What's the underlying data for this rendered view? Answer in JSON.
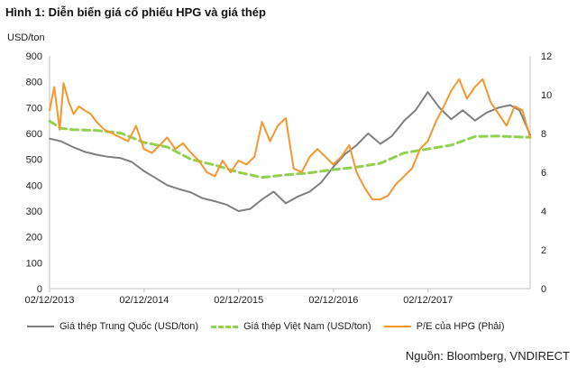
{
  "header": {
    "title": "Hình 1: Diễn biến giá cổ phiếu HPG và giá thép"
  },
  "footer": {
    "source": "Nguồn: Bloomberg, VNDIRECT"
  },
  "chart_data": {
    "type": "line",
    "title": "",
    "ylabel_left": "USD/ton",
    "ylabel_right": "",
    "ylim_left": [
      0,
      900
    ],
    "yticks_left": [
      "900",
      "800",
      "700",
      "600",
      "500",
      "400",
      "300",
      "200",
      "100",
      "0"
    ],
    "ylim_right": [
      0,
      12
    ],
    "yticks_right": [
      "12",
      "10",
      "8",
      "6",
      "4",
      "2",
      "0"
    ],
    "x_range": [
      "2013-12-02",
      "2018-12-31"
    ],
    "xticks": [
      "02/12/2013",
      "02/12/2014",
      "02/12/2015",
      "02/12/2016",
      "02/12/2017"
    ],
    "grid": false,
    "legend_position": "bottom",
    "series": [
      {
        "name": "Giá thép Trung Quốc  (USD/ton)",
        "axis": "left",
        "color": "#7f7f7f",
        "style": "solid",
        "x": [
          "2013-12-02",
          "2014-01-15",
          "2014-03-01",
          "2014-04-15",
          "2014-06-01",
          "2014-07-15",
          "2014-09-01",
          "2014-10-15",
          "2014-12-01",
          "2015-01-15",
          "2015-03-01",
          "2015-04-15",
          "2015-06-01",
          "2015-07-15",
          "2015-09-01",
          "2015-10-15",
          "2015-12-01",
          "2016-01-15",
          "2016-03-01",
          "2016-04-15",
          "2016-06-01",
          "2016-07-15",
          "2016-09-01",
          "2016-10-15",
          "2016-12-01",
          "2017-01-15",
          "2017-03-01",
          "2017-04-15",
          "2017-06-01",
          "2017-07-15",
          "2017-09-01",
          "2017-10-15",
          "2017-12-01",
          "2018-01-15",
          "2018-03-01",
          "2018-04-15",
          "2018-06-01",
          "2018-07-15",
          "2018-09-01",
          "2018-10-15",
          "2018-11-20",
          "2018-12-31"
        ],
        "values": [
          580,
          570,
          548,
          530,
          518,
          510,
          505,
          490,
          455,
          428,
          400,
          385,
          372,
          350,
          338,
          325,
          300,
          308,
          345,
          375,
          330,
          355,
          375,
          410,
          470,
          520,
          555,
          600,
          560,
          590,
          650,
          690,
          760,
          700,
          655,
          690,
          650,
          680,
          700,
          710,
          690,
          595
        ]
      },
      {
        "name": "Giá thép Việt Nam (USD/ton)",
        "axis": "left",
        "color": "#92d050",
        "style": "dashed",
        "x": [
          "2013-12-02",
          "2014-01-15",
          "2014-03-01",
          "2014-06-01",
          "2014-09-01",
          "2014-12-01",
          "2015-03-01",
          "2015-06-01",
          "2015-09-01",
          "2015-12-01",
          "2016-03-01",
          "2016-06-01",
          "2016-09-01",
          "2016-12-01",
          "2017-03-01",
          "2017-06-01",
          "2017-09-01",
          "2017-12-01",
          "2018-03-01",
          "2018-06-01",
          "2018-09-01",
          "2018-12-31"
        ],
        "values": [
          648,
          620,
          615,
          612,
          602,
          565,
          548,
          500,
          478,
          450,
          430,
          440,
          448,
          460,
          470,
          485,
          525,
          540,
          555,
          588,
          590,
          585
        ]
      },
      {
        "name": "P/E của HPG  (Phải)",
        "axis": "right",
        "color": "#f7962a",
        "style": "solid",
        "x": [
          "2013-12-02",
          "2013-12-20",
          "2014-01-10",
          "2014-01-25",
          "2014-02-15",
          "2014-03-05",
          "2014-03-25",
          "2014-04-15",
          "2014-05-10",
          "2014-06-01",
          "2014-07-01",
          "2014-08-01",
          "2014-09-01",
          "2014-10-01",
          "2014-11-01",
          "2014-12-01",
          "2015-01-01",
          "2015-02-01",
          "2015-03-01",
          "2015-04-01",
          "2015-05-01",
          "2015-06-01",
          "2015-07-01",
          "2015-08-01",
          "2015-09-01",
          "2015-10-01",
          "2015-11-01",
          "2015-12-01",
          "2016-01-01",
          "2016-02-01",
          "2016-03-01",
          "2016-04-01",
          "2016-05-01",
          "2016-06-01",
          "2016-07-01",
          "2016-08-01",
          "2016-09-01",
          "2016-10-01",
          "2016-11-01",
          "2016-12-01",
          "2017-01-01",
          "2017-02-01",
          "2017-03-01",
          "2017-04-01",
          "2017-05-01",
          "2017-06-01",
          "2017-07-01",
          "2017-08-01",
          "2017-09-01",
          "2017-10-01",
          "2017-11-01",
          "2017-12-01",
          "2018-01-01",
          "2018-02-01",
          "2018-03-01",
          "2018-04-01",
          "2018-05-01",
          "2018-06-01",
          "2018-07-01",
          "2018-08-01",
          "2018-09-01",
          "2018-10-01",
          "2018-11-01",
          "2018-12-01",
          "2018-12-31"
        ],
        "values": [
          9.2,
          10.4,
          8.2,
          10.6,
          9.6,
          9.0,
          9.4,
          9.2,
          9.0,
          8.6,
          8.2,
          8.0,
          7.8,
          7.6,
          8.4,
          7.2,
          7.0,
          7.4,
          7.8,
          7.2,
          7.5,
          7.0,
          6.6,
          6.0,
          5.8,
          6.6,
          6.0,
          6.6,
          6.4,
          6.8,
          8.6,
          7.6,
          8.4,
          8.8,
          6.2,
          6.0,
          6.8,
          7.2,
          6.8,
          6.4,
          6.8,
          7.4,
          6.0,
          5.2,
          4.6,
          4.6,
          4.8,
          5.4,
          5.8,
          6.2,
          7.2,
          7.6,
          8.6,
          9.4,
          10.2,
          10.8,
          9.8,
          10.4,
          10.8,
          9.6,
          9.0,
          8.4,
          9.4,
          9.2,
          7.8
        ]
      }
    ]
  }
}
